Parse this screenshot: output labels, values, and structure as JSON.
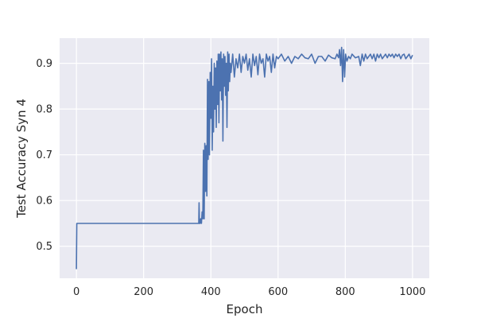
{
  "chart_data": {
    "type": "line",
    "title": "",
    "xlabel": "Epoch",
    "ylabel": "Test Accuracy Syn 4",
    "xlim": [
      -50,
      1050
    ],
    "ylim": [
      0.43,
      0.955
    ],
    "xticks": [
      0,
      200,
      400,
      600,
      800,
      1000
    ],
    "yticks": [
      0.5,
      0.6,
      0.7,
      0.8,
      0.9
    ],
    "grid": true,
    "legend": "none",
    "colors": {
      "line": "#4c72b0",
      "background": "#eaeaf2",
      "grid": "#ffffff"
    },
    "series": [
      {
        "x": [
          0,
          1,
          2,
          50,
          100,
          150,
          200,
          250,
          300,
          350,
          364,
          365,
          366,
          368,
          370,
          372,
          374,
          376,
          378,
          380,
          382,
          384,
          386,
          388,
          390,
          392,
          394,
          396,
          398,
          400,
          402,
          404,
          406,
          408,
          410,
          412,
          414,
          416,
          418,
          420,
          422,
          424,
          426,
          428,
          430,
          432,
          434,
          436,
          438,
          440,
          442,
          444,
          446,
          448,
          450,
          452,
          454,
          456,
          458,
          460,
          465,
          470,
          475,
          480,
          485,
          490,
          495,
          500,
          505,
          510,
          515,
          520,
          525,
          530,
          535,
          540,
          545,
          550,
          555,
          560,
          565,
          570,
          575,
          580,
          585,
          590,
          595,
          600,
          610,
          620,
          630,
          640,
          650,
          660,
          670,
          680,
          690,
          700,
          710,
          720,
          730,
          740,
          750,
          760,
          770,
          775,
          780,
          783,
          786,
          789,
          792,
          795,
          798,
          801,
          805,
          810,
          815,
          820,
          830,
          840,
          845,
          850,
          855,
          860,
          865,
          870,
          875,
          880,
          885,
          890,
          895,
          900,
          905,
          910,
          915,
          920,
          925,
          930,
          935,
          940,
          945,
          950,
          955,
          960,
          965,
          970,
          975,
          980,
          985,
          990,
          995,
          1000
        ],
        "y": [
          0.45,
          0.55,
          0.55,
          0.55,
          0.55,
          0.55,
          0.55,
          0.55,
          0.55,
          0.55,
          0.55,
          0.595,
          0.55,
          0.55,
          0.56,
          0.55,
          0.575,
          0.56,
          0.71,
          0.56,
          0.725,
          0.62,
          0.72,
          0.61,
          0.865,
          0.69,
          0.86,
          0.7,
          0.88,
          0.78,
          0.91,
          0.71,
          0.85,
          0.75,
          0.9,
          0.8,
          0.89,
          0.76,
          0.905,
          0.81,
          0.92,
          0.77,
          0.92,
          0.84,
          0.925,
          0.82,
          0.91,
          0.73,
          0.92,
          0.85,
          0.915,
          0.83,
          0.9,
          0.76,
          0.925,
          0.84,
          0.92,
          0.86,
          0.9,
          0.88,
          0.92,
          0.87,
          0.91,
          0.89,
          0.92,
          0.88,
          0.915,
          0.9,
          0.92,
          0.885,
          0.91,
          0.87,
          0.92,
          0.895,
          0.915,
          0.875,
          0.92,
          0.9,
          0.91,
          0.87,
          0.92,
          0.905,
          0.915,
          0.88,
          0.92,
          0.89,
          0.915,
          0.91,
          0.92,
          0.905,
          0.915,
          0.9,
          0.915,
          0.91,
          0.92,
          0.912,
          0.91,
          0.92,
          0.9,
          0.915,
          0.915,
          0.905,
          0.918,
          0.912,
          0.91,
          0.92,
          0.912,
          0.93,
          0.895,
          0.935,
          0.86,
          0.93,
          0.87,
          0.92,
          0.905,
          0.915,
          0.91,
          0.92,
          0.912,
          0.915,
          0.895,
          0.92,
          0.905,
          0.92,
          0.91,
          0.915,
          0.92,
          0.91,
          0.92,
          0.905,
          0.92,
          0.912,
          0.92,
          0.91,
          0.915,
          0.92,
          0.912,
          0.92,
          0.915,
          0.92,
          0.912,
          0.92,
          0.915,
          0.92,
          0.91,
          0.918,
          0.92,
          0.91,
          0.915,
          0.92,
          0.91,
          0.918
        ]
      }
    ]
  }
}
